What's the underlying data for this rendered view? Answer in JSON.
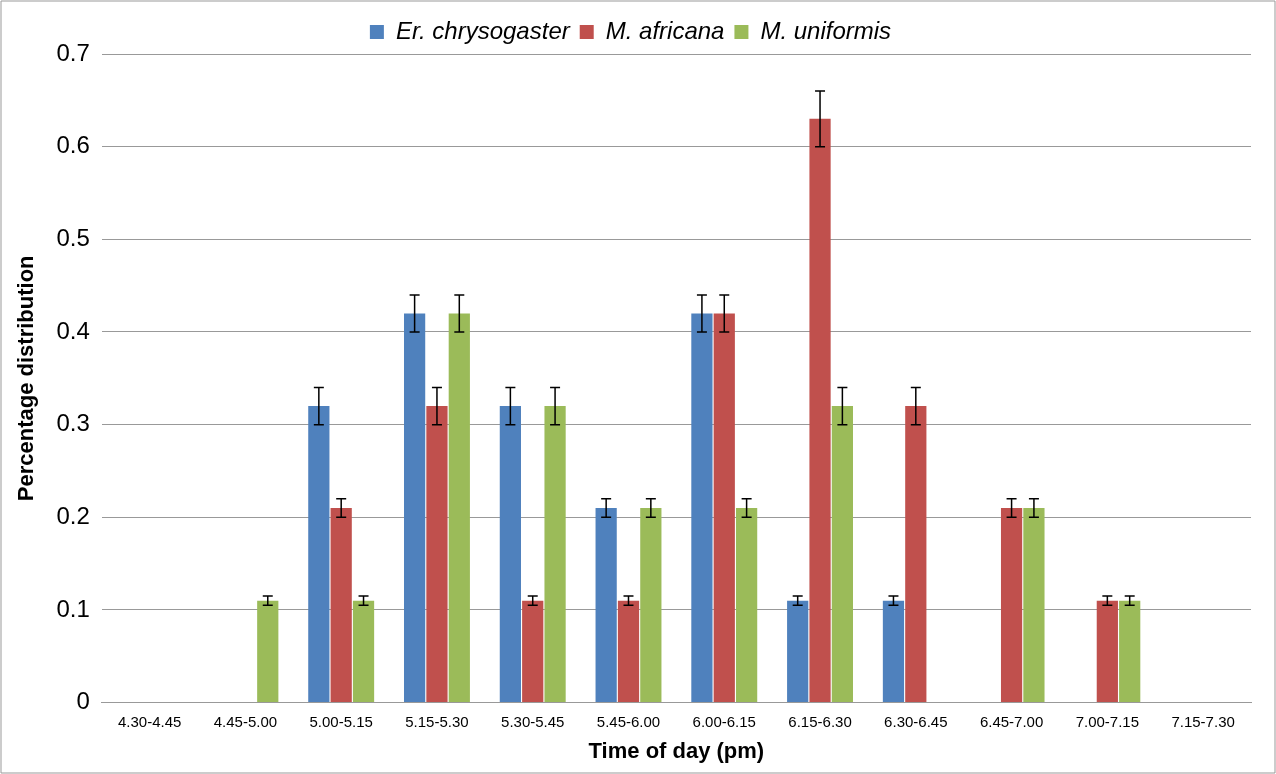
{
  "chart_data": {
    "type": "bar",
    "xlabel": "Time of day (pm)",
    "ylabel": "Percentage distribution",
    "categories": [
      "4.30-4.45",
      "4.45-5.00",
      "5.00-5.15",
      "5.15-5.30",
      "5.30-5.45",
      "5.45-6.00",
      "6.00-6.15",
      "6.15-6.30",
      "6.30-6.45",
      "6.45-7.00",
      "7.00-7.15",
      "7.15-7.30"
    ],
    "series": [
      {
        "name": "Er. chrysogaster",
        "color": "#4f81bd",
        "values": [
          null,
          null,
          0.32,
          0.42,
          0.32,
          0.21,
          0.42,
          0.11,
          0.11,
          null,
          null,
          null
        ],
        "errors": [
          null,
          null,
          0.02,
          0.02,
          0.02,
          0.01,
          0.02,
          0.005,
          0.005,
          null,
          null,
          null
        ]
      },
      {
        "name": "M. africana",
        "color": "#c0504d",
        "values": [
          null,
          null,
          0.21,
          0.32,
          0.11,
          0.11,
          0.42,
          0.63,
          0.32,
          0.21,
          0.11,
          null
        ],
        "errors": [
          null,
          null,
          0.01,
          0.02,
          0.005,
          0.005,
          0.02,
          0.03,
          0.02,
          0.01,
          0.005,
          null
        ]
      },
      {
        "name": "M. uniformis",
        "color": "#9bbb59",
        "values": [
          null,
          0.11,
          0.11,
          0.42,
          0.32,
          0.21,
          0.21,
          0.32,
          null,
          0.21,
          0.11,
          null
        ],
        "errors": [
          null,
          0.005,
          0.005,
          0.02,
          0.02,
          0.01,
          0.01,
          0.02,
          null,
          0.01,
          0.005,
          null
        ]
      }
    ],
    "ylim": [
      0,
      0.7
    ],
    "yticks": [
      0,
      0.1,
      0.2,
      0.3,
      0.4,
      0.5,
      0.6,
      0.7
    ],
    "grid": "y",
    "legend": "top"
  }
}
